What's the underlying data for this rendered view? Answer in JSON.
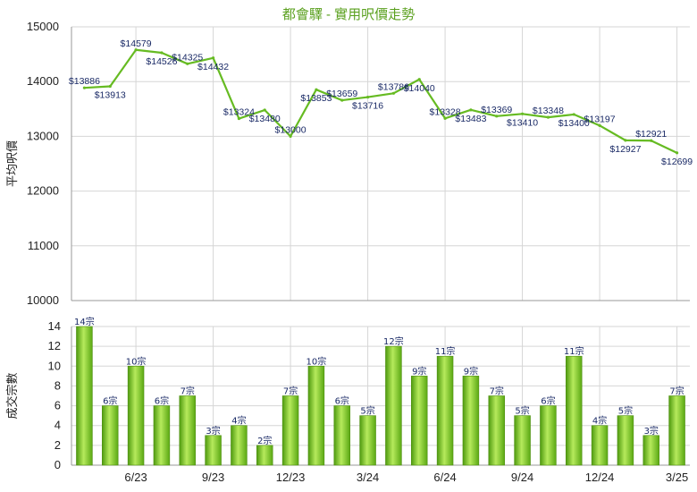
{
  "chart_data": [
    {
      "type": "line",
      "title": "都會驛 - 實用呎價走勢",
      "ylabel": "平均呎價",
      "ylim": [
        10000,
        15000
      ],
      "yticks": [
        10000,
        11000,
        12000,
        13000,
        14000,
        15000
      ],
      "grid": true,
      "series": [
        {
          "color": "#66bb22",
          "values": [
            13886,
            13913,
            14579,
            14526,
            14325,
            14432,
            13324,
            13480,
            13000,
            13853,
            13659,
            13716,
            13786,
            14040,
            13328,
            13483,
            13369,
            13410,
            13348,
            13400,
            13197,
            12927,
            12921,
            12699
          ],
          "labels": [
            "$13886",
            "$13913",
            "$14579",
            "$14526",
            "$14325",
            "$14432",
            "$13324",
            "$13480",
            "$13000",
            "$13853",
            "$13659",
            "$13716",
            "$13786",
            "$14040",
            "$13328",
            "$13483",
            "$13369",
            "$13410",
            "$13348",
            "$13400",
            "$13197",
            "$12927",
            "$12921",
            "$12699"
          ]
        }
      ]
    },
    {
      "type": "bar",
      "ylabel": "成交宗數",
      "ylim": [
        0,
        14
      ],
      "yticks": [
        0,
        2,
        4,
        6,
        8,
        10,
        12,
        14
      ],
      "grid": true,
      "categories": [
        "",
        "",
        "6/23",
        "",
        "",
        "9/23",
        "",
        "",
        "12/23",
        "",
        "",
        "3/24",
        "",
        "",
        "6/24",
        "",
        "",
        "9/24",
        "",
        "",
        "12/24",
        "",
        "",
        "3/25"
      ],
      "x_tick_labels": [
        "6/23",
        "9/23",
        "12/23",
        "3/24",
        "6/24",
        "9/24",
        "12/24",
        "3/25"
      ],
      "series": [
        {
          "color": "#7ac41f",
          "values": [
            14,
            6,
            10,
            6,
            7,
            3,
            4,
            2,
            7,
            10,
            6,
            5,
            12,
            9,
            11,
            9,
            7,
            5,
            6,
            11,
            4,
            5,
            3,
            7
          ],
          "labels": [
            "14宗",
            "6宗",
            "10宗",
            "6宗",
            "7宗",
            "3宗",
            "4宗",
            "2宗",
            "7宗",
            "10宗",
            "6宗",
            "5宗",
            "12宗",
            "9宗",
            "11宗",
            "9宗",
            "7宗",
            "5宗",
            "6宗",
            "11宗",
            "4宗",
            "5宗",
            "3宗",
            "7宗"
          ]
        }
      ]
    }
  ]
}
